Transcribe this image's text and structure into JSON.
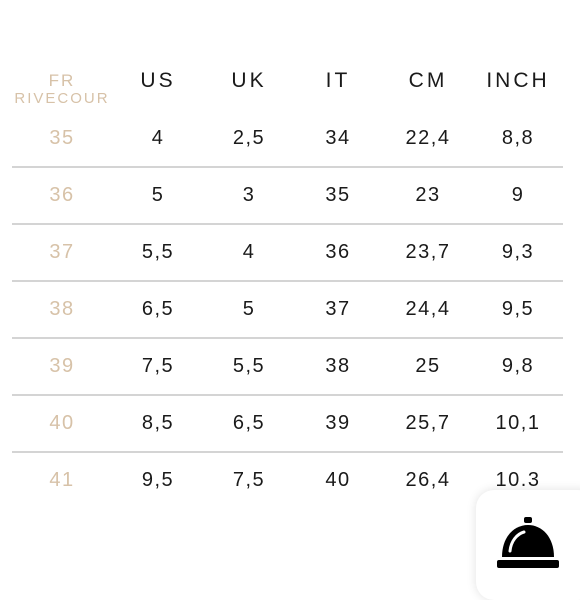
{
  "columns": [
    {
      "key": "fr",
      "line1": "FR",
      "line2": "RIVECOUR"
    },
    {
      "key": "us",
      "label": "US"
    },
    {
      "key": "uk",
      "label": "UK"
    },
    {
      "key": "it",
      "label": "IT"
    },
    {
      "key": "cm",
      "label": "CM"
    },
    {
      "key": "inch",
      "label": "INCH"
    }
  ],
  "rows": [
    {
      "fr": "35",
      "us": "4",
      "uk": "2,5",
      "it": "34",
      "cm": "22,4",
      "inch": "8,8"
    },
    {
      "fr": "36",
      "us": "5",
      "uk": "3",
      "it": "35",
      "cm": "23",
      "inch": "9"
    },
    {
      "fr": "37",
      "us": "5,5",
      "uk": "4",
      "it": "36",
      "cm": "23,7",
      "inch": "9,3"
    },
    {
      "fr": "38",
      "us": "6,5",
      "uk": "5",
      "it": "37",
      "cm": "24,4",
      "inch": "9,5"
    },
    {
      "fr": "39",
      "us": "7,5",
      "uk": "5,5",
      "it": "38",
      "cm": "25",
      "inch": "9,8"
    },
    {
      "fr": "40",
      "us": "8,5",
      "uk": "6,5",
      "it": "39",
      "cm": "25,7",
      "inch": "10,1"
    },
    {
      "fr": "41",
      "us": "9,5",
      "uk": "7,5",
      "it": "40",
      "cm": "26,4",
      "inch": "10.3"
    }
  ],
  "colors": {
    "fr_accent": "#d7c2a8",
    "text": "#1a1a1a",
    "rule": "#d4d4d4"
  },
  "icons": {
    "badge": "service-bell-icon"
  }
}
